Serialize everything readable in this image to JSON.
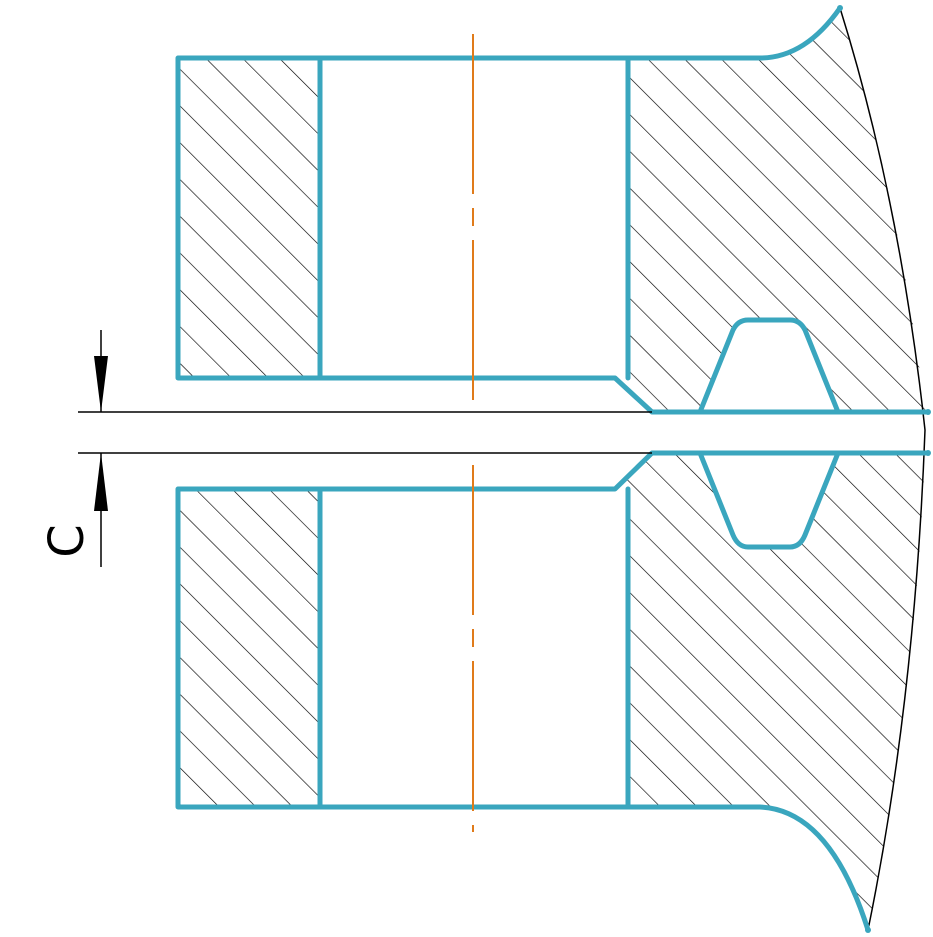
{
  "dimension": {
    "label": "C"
  },
  "colors": {
    "outline": "#3AA6BE",
    "centerline": "#E07B1A",
    "hatch": "#000000",
    "dimension": "#000000",
    "background": "#FFFFFF"
  }
}
